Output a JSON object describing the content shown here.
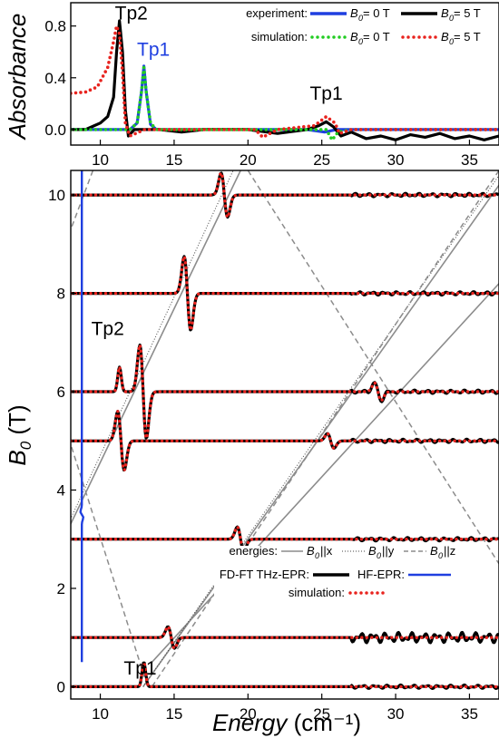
{
  "colors": {
    "black": "#000000",
    "blue": "#1f3fe0",
    "green": "#22cc22",
    "red": "#e8231e",
    "gray": "#8c8c8c"
  },
  "chart_data": [
    {
      "type": "line",
      "panel": "top",
      "ylabel": "Absorbance",
      "xlim": [
        8,
        37
      ],
      "ylim": [
        -0.12,
        0.98
      ],
      "xticks": [
        10,
        15,
        20,
        25,
        30,
        35
      ],
      "yticks": [
        0.0,
        0.4,
        0.8
      ],
      "ytick_labels": [
        "0.0",
        "0.4",
        "0.8"
      ],
      "legend": {
        "experiment_label": "experiment:",
        "simulation_label": "simulation:",
        "b0": "B",
        "b0_sub": "0",
        "zero_field": " = 0 T",
        "five_tesla": " = 5 T"
      },
      "annotations": [
        {
          "text": "Tp2",
          "x": 12.1,
          "y": 0.85,
          "color": "black"
        },
        {
          "text": "Tp1",
          "x": 13.6,
          "y": 0.57,
          "color": "blue"
        },
        {
          "text": "Tp1",
          "x": 25.3,
          "y": 0.23,
          "color": "black"
        }
      ],
      "series": [
        {
          "name": "experiment B0 = 0 T",
          "color": "blue",
          "style": "solid",
          "points": [
            [
              8,
              0.0
            ],
            [
              12,
              0.0
            ],
            [
              12.5,
              0.05
            ],
            [
              12.8,
              0.3
            ],
            [
              12.95,
              0.49
            ],
            [
              13.1,
              0.3
            ],
            [
              13.4,
              0.04
            ],
            [
              13.8,
              0.0
            ],
            [
              24,
              0.0
            ],
            [
              25.2,
              -0.02
            ],
            [
              26,
              0.0
            ],
            [
              37,
              0.0
            ]
          ]
        },
        {
          "name": "experiment B0 = 5 T",
          "color": "black",
          "style": "solid",
          "points": [
            [
              8,
              0.0
            ],
            [
              9,
              0.0
            ],
            [
              10,
              0.05
            ],
            [
              10.5,
              0.1
            ],
            [
              10.9,
              0.25
            ],
            [
              11.1,
              0.6
            ],
            [
              11.3,
              0.84
            ],
            [
              11.5,
              0.6
            ],
            [
              11.7,
              0.15
            ],
            [
              11.9,
              -0.05
            ],
            [
              12.3,
              0.0
            ],
            [
              14,
              0.0
            ],
            [
              15.5,
              -0.02
            ],
            [
              17,
              0.0
            ],
            [
              20,
              0.0
            ],
            [
              22,
              -0.03
            ],
            [
              24,
              0.0
            ],
            [
              24.8,
              0.03
            ],
            [
              25.3,
              0.06
            ],
            [
              25.8,
              0.02
            ],
            [
              26.3,
              -0.05
            ],
            [
              27,
              -0.02
            ],
            [
              28,
              -0.07
            ],
            [
              29,
              -0.05
            ],
            [
              30,
              -0.08
            ],
            [
              31,
              -0.04
            ],
            [
              32,
              -0.06
            ],
            [
              33,
              -0.03
            ],
            [
              34,
              -0.07
            ],
            [
              35,
              -0.05
            ],
            [
              36,
              -0.08
            ],
            [
              37,
              -0.05
            ]
          ]
        },
        {
          "name": "simulation B0 = 0 T",
          "color": "green",
          "style": "dotted",
          "points": [
            [
              8,
              0.0
            ],
            [
              12,
              0.0
            ],
            [
              12.5,
              0.05
            ],
            [
              12.8,
              0.3
            ],
            [
              12.95,
              0.48
            ],
            [
              13.1,
              0.3
            ],
            [
              13.4,
              0.05
            ],
            [
              13.8,
              0.0
            ],
            [
              25.3,
              0.0
            ],
            [
              25.7,
              -0.08
            ],
            [
              26.1,
              -0.02
            ],
            [
              27,
              0.0
            ],
            [
              37,
              0.0
            ]
          ]
        },
        {
          "name": "simulation B0 = 5 T",
          "color": "red",
          "style": "dotted",
          "points": [
            [
              8,
              0.28
            ],
            [
              9,
              0.29
            ],
            [
              9.8,
              0.33
            ],
            [
              10.5,
              0.48
            ],
            [
              10.9,
              0.68
            ],
            [
              11.1,
              0.8
            ],
            [
              11.3,
              0.74
            ],
            [
              11.5,
              0.45
            ],
            [
              11.7,
              0.05
            ],
            [
              12,
              -0.05
            ],
            [
              13,
              0.0
            ],
            [
              20.5,
              0.0
            ],
            [
              21,
              -0.06
            ],
            [
              22,
              0.0
            ],
            [
              24.5,
              0.03
            ],
            [
              25.3,
              0.1
            ],
            [
              25.9,
              0.05
            ],
            [
              26.2,
              -0.03
            ],
            [
              27,
              0.0
            ],
            [
              37,
              0.0
            ]
          ]
        }
      ]
    },
    {
      "type": "line",
      "panel": "bottom",
      "xlabel": "Energy",
      "xlabel_unit": "(cm⁻¹)",
      "ylabel": "B",
      "ylabel_sub": "0",
      "ylabel_unit": " (T)",
      "xlim": [
        8,
        37
      ],
      "ylim": [
        -0.25,
        10.5
      ],
      "xticks": [
        10,
        15,
        20,
        25,
        30,
        35
      ],
      "yticks": [
        0,
        2,
        4,
        6,
        8,
        10
      ],
      "legend": {
        "energies_label": "energies:",
        "bx": "||x",
        "by": "||y",
        "bz": "||z",
        "b": "B",
        "b_sub": "0",
        "fdft_label": "FD-FT THz-EPR:",
        "hf_label": "HF-EPR:",
        "simulation_label": "simulation:"
      },
      "annotations": [
        {
          "text": "Tp2",
          "x": 10.5,
          "y": 7.15
        },
        {
          "text": "Tp1",
          "x": 12.7,
          "y": 0.25
        }
      ],
      "spectra": [
        {
          "b0": 0,
          "features": [
            {
              "x": 12.95,
              "amp": 0.5,
              "shape": "peak"
            }
          ]
        },
        {
          "b0": 1,
          "features": [
            {
              "x": 14.8,
              "amp": 0.22,
              "shape": "dispersive"
            }
          ]
        },
        {
          "b0": 3,
          "features": [
            {
              "x": 19.5,
              "amp": 0.25,
              "shape": "dispersive"
            }
          ]
        },
        {
          "b0": 5,
          "features": [
            {
              "x": 11.4,
              "amp": 0.6,
              "shape": "dispersive"
            },
            {
              "x": 25.6,
              "amp": 0.15,
              "shape": "dispersive"
            }
          ]
        },
        {
          "b0": 6,
          "features": [
            {
              "x": 11.3,
              "amp": 0.5,
              "shape": "peak"
            },
            {
              "x": 12.9,
              "amp": 0.95,
              "shape": "dispersive"
            },
            {
              "x": 28.8,
              "amp": 0.18,
              "shape": "dispersive"
            }
          ]
        },
        {
          "b0": 8,
          "features": [
            {
              "x": 15.9,
              "amp": 0.75,
              "shape": "dispersive"
            }
          ]
        },
        {
          "b0": 10,
          "features": [
            {
              "x": 18.4,
              "amp": 0.45,
              "shape": "dispersive"
            }
          ]
        }
      ],
      "energy_lines": {
        "x_solid": [
          [
            [
              7.5,
              3.0
            ],
            [
              19.5,
              10.5
            ]
          ],
          [
            [
              12.9,
              0.0
            ],
            [
              37,
              10.2
            ]
          ],
          [
            [
              13.5,
              0.5
            ],
            [
              37,
              8.2
            ]
          ]
        ],
        "y_dotted": [
          [
            [
              7.5,
              3.1
            ],
            [
              19.0,
              10.5
            ]
          ],
          [
            [
              12.9,
              0.0
            ],
            [
              37,
              10.4
            ]
          ]
        ],
        "z_dashed": [
          [
            [
              9.5,
              10.5
            ],
            [
              7.5,
              8.9
            ]
          ],
          [
            [
              7.5,
              5.4
            ],
            [
              13.2,
              0.0
            ]
          ],
          [
            [
              20.0,
              10.5
            ],
            [
              37,
              2.5
            ]
          ],
          [
            [
              13.5,
              0.0
            ],
            [
              37,
              10.5
            ]
          ]
        ]
      },
      "hf_epr": {
        "x0": 8.75,
        "b_range": [
          0.5,
          10.5
        ],
        "feature_b": 3.5
      }
    }
  ]
}
